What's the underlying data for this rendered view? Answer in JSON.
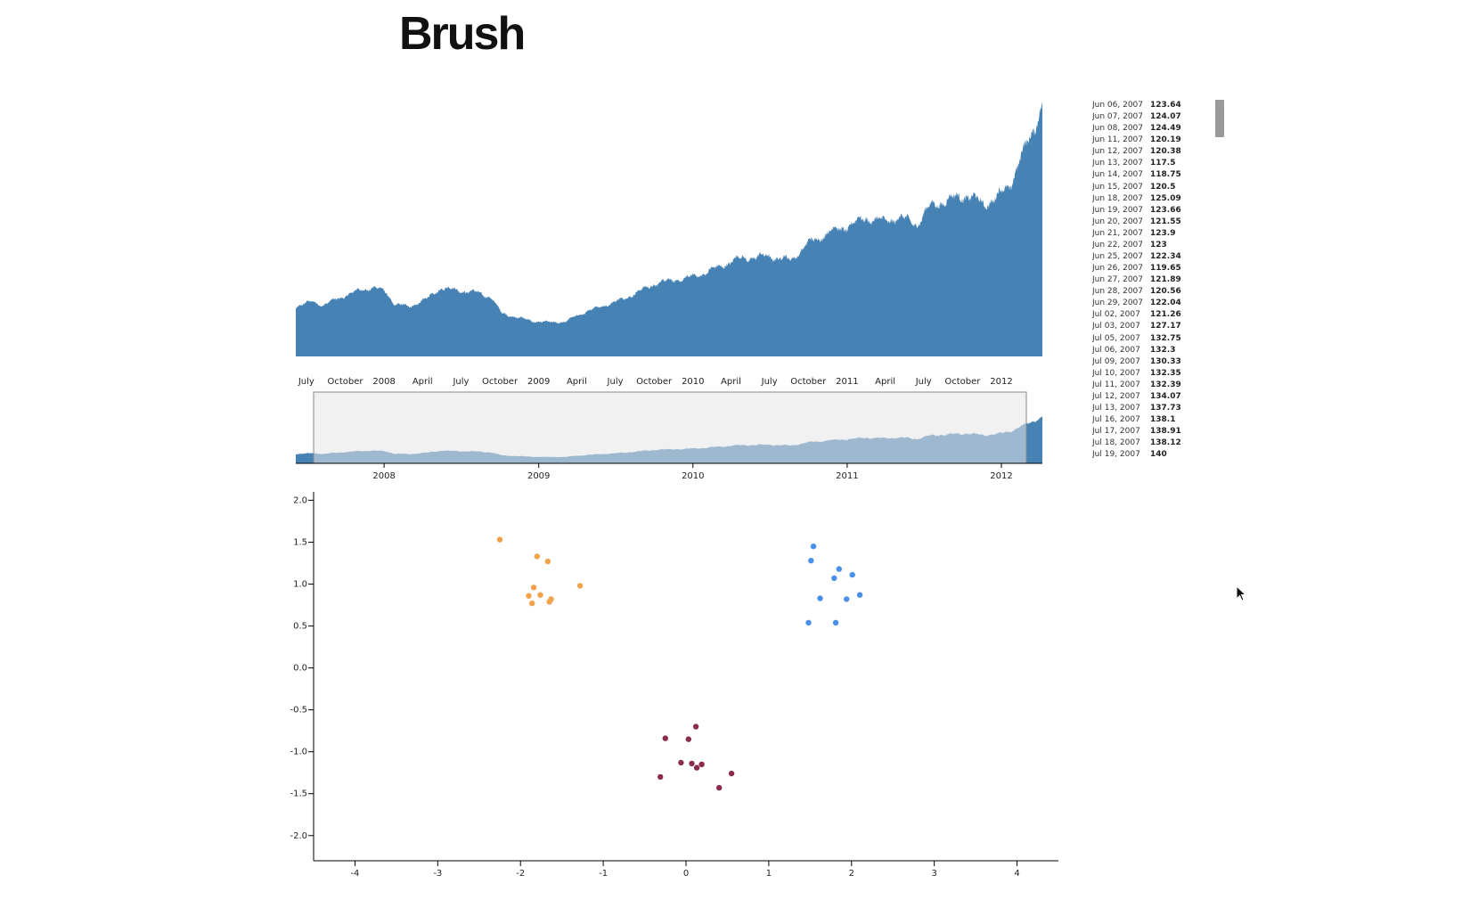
{
  "title": "Brush",
  "colors": {
    "area": "#4682b4",
    "brush_fill": "#e6e6e6",
    "brush_stroke": "#888888",
    "orange": "#f0a34a",
    "blue": "#4a8fe8",
    "maroon": "#8b2c4e"
  },
  "table": {
    "rows": [
      {
        "date": "Jun 06, 2007",
        "value": "123.64"
      },
      {
        "date": "Jun 07, 2007",
        "value": "124.07"
      },
      {
        "date": "Jun 08, 2007",
        "value": "124.49"
      },
      {
        "date": "Jun 11, 2007",
        "value": "120.19"
      },
      {
        "date": "Jun 12, 2007",
        "value": "120.38"
      },
      {
        "date": "Jun 13, 2007",
        "value": "117.5"
      },
      {
        "date": "Jun 14, 2007",
        "value": "118.75"
      },
      {
        "date": "Jun 15, 2007",
        "value": "120.5"
      },
      {
        "date": "Jun 18, 2007",
        "value": "125.09"
      },
      {
        "date": "Jun 19, 2007",
        "value": "123.66"
      },
      {
        "date": "Jun 20, 2007",
        "value": "121.55"
      },
      {
        "date": "Jun 21, 2007",
        "value": "123.9"
      },
      {
        "date": "Jun 22, 2007",
        "value": "123"
      },
      {
        "date": "Jun 25, 2007",
        "value": "122.34"
      },
      {
        "date": "Jun 26, 2007",
        "value": "119.65"
      },
      {
        "date": "Jun 27, 2007",
        "value": "121.89"
      },
      {
        "date": "Jun 28, 2007",
        "value": "120.56"
      },
      {
        "date": "Jun 29, 2007",
        "value": "122.04"
      },
      {
        "date": "Jul 02, 2007",
        "value": "121.26"
      },
      {
        "date": "Jul 03, 2007",
        "value": "127.17"
      },
      {
        "date": "Jul 05, 2007",
        "value": "132.75"
      },
      {
        "date": "Jul 06, 2007",
        "value": "132.3"
      },
      {
        "date": "Jul 09, 2007",
        "value": "130.33"
      },
      {
        "date": "Jul 10, 2007",
        "value": "132.35"
      },
      {
        "date": "Jul 11, 2007",
        "value": "132.39"
      },
      {
        "date": "Jul 12, 2007",
        "value": "134.07"
      },
      {
        "date": "Jul 13, 2007",
        "value": "137.73"
      },
      {
        "date": "Jul 16, 2007",
        "value": "138.1"
      },
      {
        "date": "Jul 17, 2007",
        "value": "138.91"
      },
      {
        "date": "Jul 18, 2007",
        "value": "138.12"
      },
      {
        "date": "Jul 19, 2007",
        "value": "140"
      }
    ]
  },
  "chart_data": [
    {
      "type": "area",
      "role": "focus",
      "x_ticks": [
        "July",
        "October",
        "2008",
        "April",
        "July",
        "October",
        "2009",
        "April",
        "July",
        "October",
        "2010",
        "April",
        "July",
        "October",
        "2011",
        "April",
        "July",
        "October",
        "2012"
      ],
      "x_range": [
        "2007-06",
        "2012-04"
      ],
      "series_keypoints": [
        [
          "2007-06-06",
          124
        ],
        [
          "2007-07-15",
          137
        ],
        [
          "2007-08-10",
          128
        ],
        [
          "2007-10-01",
          152
        ],
        [
          "2007-11-10",
          167
        ],
        [
          "2007-12-10",
          172
        ],
        [
          "2008-01-05",
          161
        ],
        [
          "2008-01-25",
          131
        ],
        [
          "2008-03-01",
          124
        ],
        [
          "2008-04-15",
          146
        ],
        [
          "2008-05-15",
          171
        ],
        [
          "2008-07-01",
          164
        ],
        [
          "2008-08-05",
          160
        ],
        [
          "2008-09-10",
          148
        ],
        [
          "2008-10-05",
          108
        ],
        [
          "2008-11-15",
          96
        ],
        [
          "2008-12-20",
          88
        ],
        [
          "2009-01-20",
          85
        ],
        [
          "2009-03-05",
          86
        ],
        [
          "2009-04-01",
          102
        ],
        [
          "2009-05-15",
          120
        ],
        [
          "2009-07-15",
          141
        ],
        [
          "2009-09-15",
          172
        ],
        [
          "2009-10-15",
          186
        ],
        [
          "2009-12-15",
          194
        ],
        [
          "2010-01-20",
          205
        ],
        [
          "2010-03-01",
          222
        ],
        [
          "2010-04-15",
          243
        ],
        [
          "2010-05-20",
          247
        ],
        [
          "2010-07-01",
          250
        ],
        [
          "2010-08-20",
          240
        ],
        [
          "2010-10-01",
          282
        ],
        [
          "2010-11-15",
          308
        ],
        [
          "2011-01-05",
          326
        ],
        [
          "2011-02-15",
          346
        ],
        [
          "2011-04-01",
          336
        ],
        [
          "2011-05-01",
          348
        ],
        [
          "2011-06-15",
          330
        ],
        [
          "2011-07-15",
          373
        ],
        [
          "2011-08-10",
          385
        ],
        [
          "2011-09-15",
          395
        ],
        [
          "2011-10-15",
          403
        ],
        [
          "2011-11-20",
          378
        ],
        [
          "2011-12-31",
          405
        ],
        [
          "2012-01-20",
          425
        ],
        [
          "2012-02-15",
          495
        ],
        [
          "2012-03-10",
          545
        ],
        [
          "2012-03-27",
          600
        ],
        [
          "2012-04-07",
          630
        ]
      ]
    },
    {
      "type": "area",
      "role": "context",
      "x_ticks": [
        "2008",
        "2009",
        "2010",
        "2011",
        "2012"
      ],
      "brush_extent": [
        "2007-06",
        "2012-03"
      ]
    },
    {
      "type": "scatter",
      "x_ticks": [
        "-4",
        "-3",
        "-2",
        "-1",
        "0",
        "1",
        "2",
        "3",
        "4"
      ],
      "y_ticks": [
        "2.0",
        "1.5",
        "1.0",
        "0.5",
        "0.0",
        "-0.5",
        "-1.0",
        "-1.5",
        "-2.0"
      ],
      "xlim": [
        -4.5,
        4.5
      ],
      "ylim": [
        -2.3,
        2.1
      ],
      "series": [
        {
          "color": "orange",
          "points": [
            [
              -2.25,
              1.53
            ],
            [
              -1.8,
              1.33
            ],
            [
              -1.67,
              1.27
            ],
            [
              -1.28,
              0.98
            ],
            [
              -1.84,
              0.96
            ],
            [
              -1.76,
              0.87
            ],
            [
              -1.9,
              0.86
            ],
            [
              -1.63,
              0.82
            ],
            [
              -1.65,
              0.79
            ],
            [
              -1.86,
              0.77
            ]
          ]
        },
        {
          "color": "blue",
          "points": [
            [
              1.54,
              1.45
            ],
            [
              1.51,
              1.28
            ],
            [
              1.85,
              1.18
            ],
            [
              2.01,
              1.11
            ],
            [
              1.79,
              1.07
            ],
            [
              2.1,
              0.87
            ],
            [
              1.62,
              0.83
            ],
            [
              1.94,
              0.82
            ],
            [
              1.48,
              0.54
            ],
            [
              1.81,
              0.54
            ]
          ]
        },
        {
          "color": "maroon",
          "points": [
            [
              0.12,
              -0.7
            ],
            [
              -0.25,
              -0.84
            ],
            [
              0.03,
              -0.85
            ],
            [
              -0.06,
              -1.13
            ],
            [
              0.07,
              -1.14
            ],
            [
              0.19,
              -1.15
            ],
            [
              0.13,
              -1.19
            ],
            [
              0.55,
              -1.26
            ],
            [
              -0.31,
              -1.3
            ],
            [
              0.4,
              -1.43
            ]
          ]
        }
      ]
    }
  ]
}
